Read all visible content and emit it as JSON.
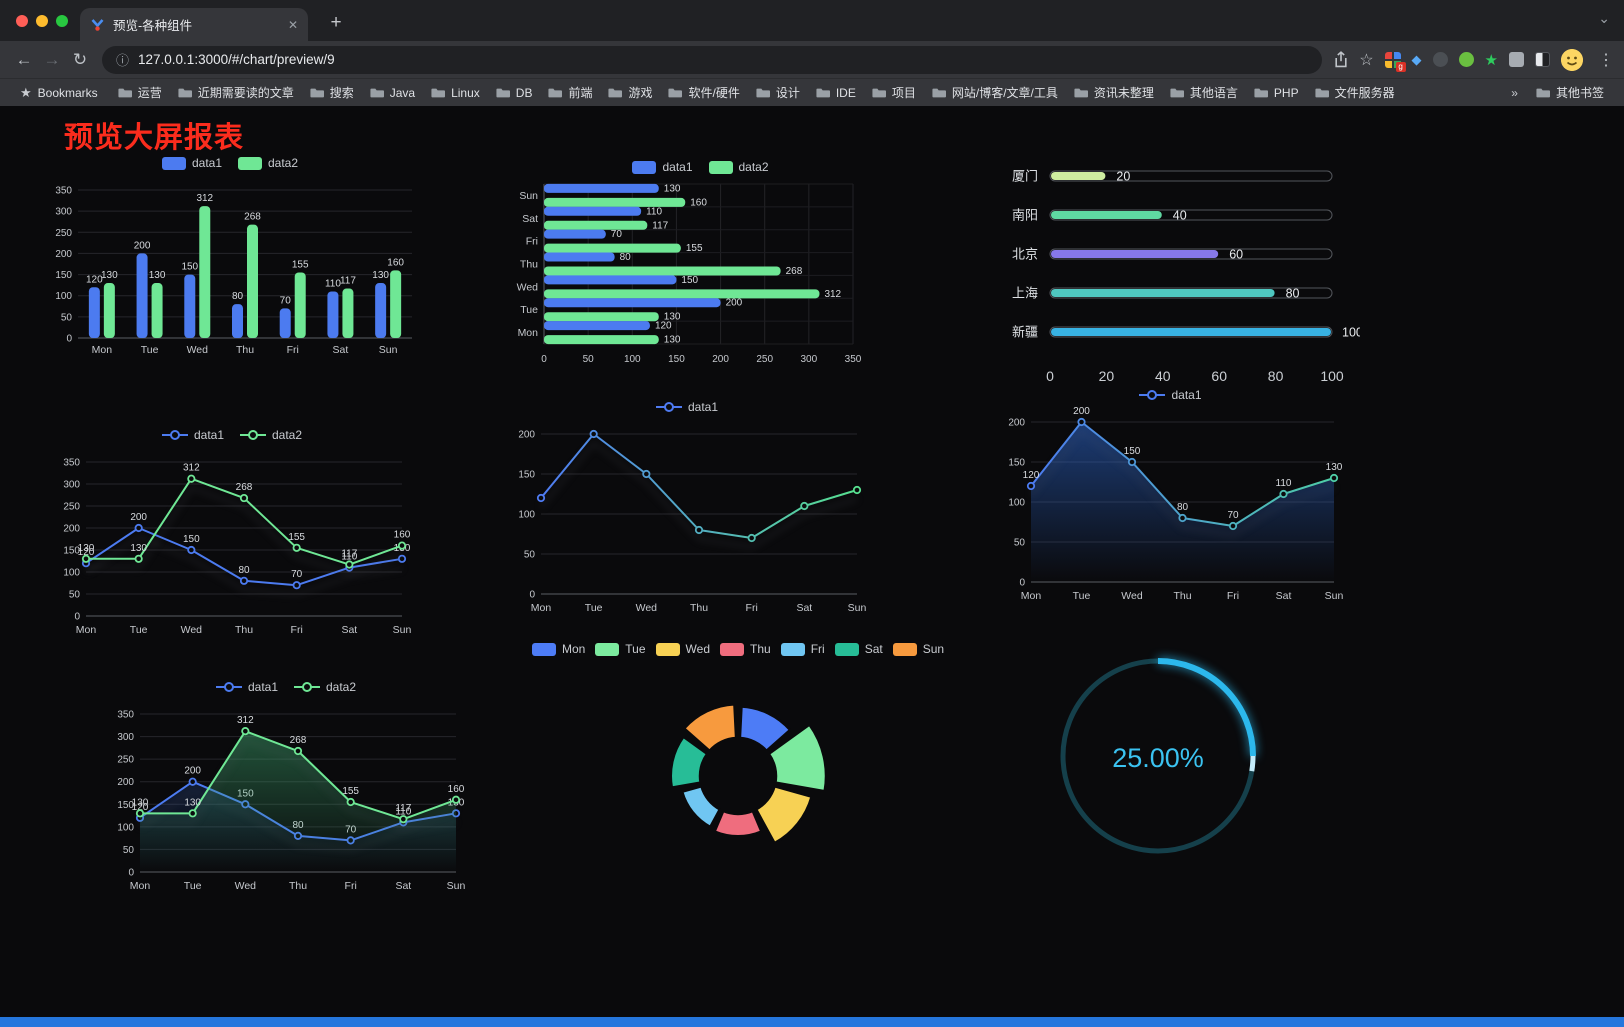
{
  "browser": {
    "tab_title": "预览-各种组件",
    "new_tab_label": "+",
    "url": "127.0.0.1:3000/#/chart/preview/9",
    "bookmarks_label": "Bookmarks",
    "bookmarks": [
      "运营",
      "近期需要读的文章",
      "搜索",
      "Java",
      "Linux",
      "DB",
      "前端",
      "游戏",
      "软件/硬件",
      "设计",
      "IDE",
      "项目",
      "网站/博客/文章/工具",
      "资讯未整理",
      "其他语言",
      "PHP",
      "文件服务器"
    ],
    "overflow_chevron": "»",
    "other_bookmarks": "其他书签",
    "extension_badge": "g"
  },
  "page": {
    "title": "预览大屏报表"
  },
  "chart_data": [
    {
      "type": "bar",
      "categories": [
        "Mon",
        "Tue",
        "Wed",
        "Thu",
        "Fri",
        "Sat",
        "Sun"
      ],
      "series": [
        {
          "name": "data1",
          "color": "#4C7BF0",
          "values": [
            120,
            200,
            150,
            80,
            70,
            110,
            130
          ]
        },
        {
          "name": "data2",
          "color": "#6FE795",
          "values": [
            130,
            130,
            312,
            268,
            155,
            117,
            160
          ]
        }
      ],
      "ylim": [
        0,
        350
      ],
      "ytick": 50,
      "show_labels": true
    },
    {
      "type": "hbar",
      "categories": [
        "Mon",
        "Tue",
        "Wed",
        "Thu",
        "Fri",
        "Sat",
        "Sun"
      ],
      "series": [
        {
          "name": "data1",
          "color": "#4C7BF0",
          "values": [
            120,
            200,
            150,
            80,
            70,
            110,
            130
          ]
        },
        {
          "name": "data2",
          "color": "#6FE795",
          "values": [
            130,
            130,
            312,
            268,
            155,
            117,
            160
          ]
        }
      ],
      "xlim": [
        0,
        350
      ],
      "xtick": 50,
      "show_labels": true
    },
    {
      "type": "progress",
      "rows": [
        {
          "label": "厦门",
          "value": 20,
          "color": "#CEED9F"
        },
        {
          "label": "南阳",
          "value": 40,
          "color": "#5FD8A2"
        },
        {
          "label": "北京",
          "value": 60,
          "color": "#8678E9"
        },
        {
          "label": "上海",
          "value": 80,
          "color": "#4FC7C0"
        },
        {
          "label": "新疆",
          "value": 100,
          "color": "#38B2E3"
        }
      ],
      "xlim": [
        0,
        100
      ],
      "xticks": [
        0,
        20,
        40,
        60,
        80,
        100
      ]
    },
    {
      "type": "line",
      "categories": [
        "Mon",
        "Tue",
        "Wed",
        "Thu",
        "Fri",
        "Sat",
        "Sun"
      ],
      "series": [
        {
          "name": "data1",
          "color": "#4C7BF0",
          "values": [
            120,
            200,
            150,
            80,
            70,
            110,
            130
          ]
        },
        {
          "name": "data2",
          "color": "#6FE795",
          "values": [
            130,
            130,
            312,
            268,
            155,
            117,
            160
          ]
        }
      ],
      "ylim": [
        0,
        350
      ],
      "ytick": 50,
      "show_labels": true
    },
    {
      "type": "line",
      "categories": [
        "Mon",
        "Tue",
        "Wed",
        "Thu",
        "Fri",
        "Sat",
        "Sun"
      ],
      "series": [
        {
          "name": "data1",
          "gradient": [
            "#4F7BF2",
            "#57E08F"
          ],
          "values": [
            120,
            200,
            150,
            80,
            70,
            110,
            130
          ]
        }
      ],
      "ylim": [
        0,
        200
      ],
      "ytick": 50,
      "show_labels": false
    },
    {
      "type": "line",
      "categories": [
        "Mon",
        "Tue",
        "Wed",
        "Thu",
        "Fri",
        "Sat",
        "Sun"
      ],
      "series": [
        {
          "name": "data1",
          "gradient": [
            "#4C7BF0",
            "#4FCDA6"
          ],
          "values": [
            120,
            200,
            150,
            80,
            70,
            110,
            130
          ],
          "area": {
            "color": "#2F6FE0",
            "opacity": 0.5
          }
        }
      ],
      "ylim": [
        0,
        200
      ],
      "ytick": 50,
      "show_labels": true
    },
    {
      "type": "line",
      "categories": [
        "Mon",
        "Tue",
        "Wed",
        "Thu",
        "Fri",
        "Sat",
        "Sun"
      ],
      "series": [
        {
          "name": "data1",
          "color": "#4C7BF0",
          "values": [
            120,
            200,
            150,
            80,
            70,
            110,
            130
          ],
          "area": {
            "color": "#2B5CC0",
            "opacity": 0.22
          }
        },
        {
          "name": "data2",
          "color": "#6FE795",
          "values": [
            130,
            130,
            312,
            268,
            155,
            117,
            160
          ],
          "area": {
            "color": "#3FAE73",
            "opacity": 0.45
          }
        }
      ],
      "ylim": [
        0,
        350
      ],
      "ytick": 50,
      "show_labels": true
    },
    {
      "type": "pie",
      "rose": true,
      "items": [
        {
          "name": "Mon",
          "value": 120,
          "color": "#4D7CF6"
        },
        {
          "name": "Tue",
          "value": 200,
          "color": "#7CEA9F"
        },
        {
          "name": "Wed",
          "value": 150,
          "color": "#F7D154"
        },
        {
          "name": "Thu",
          "value": 80,
          "color": "#EF6D7E"
        },
        {
          "name": "Fri",
          "value": 70,
          "color": "#70C6F2"
        },
        {
          "name": "Sat",
          "value": 110,
          "color": "#27BD97"
        },
        {
          "name": "Sun",
          "value": 130,
          "color": "#F79A3E"
        }
      ]
    },
    {
      "type": "gauge",
      "value": 25,
      "label": "25.00%",
      "color": "#2CB8EC",
      "track": "#15404B",
      "text_color": "#3BC3F1"
    }
  ]
}
